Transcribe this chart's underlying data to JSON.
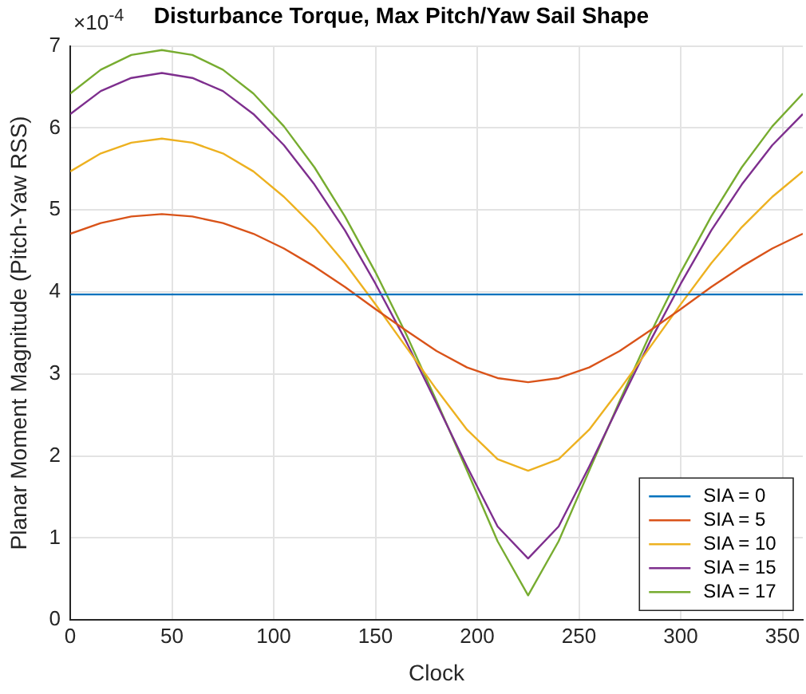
{
  "chart_data": {
    "type": "line",
    "title": "Disturbance Torque, Max Pitch/Yaw Sail Shape",
    "xlabel": "Clock",
    "ylabel": "Planar Moment Magnitude (Pitch-Yaw RSS)",
    "annotations": [
      "×10$^{-4}$"
    ],
    "x": [
      0,
      15,
      30,
      45,
      60,
      75,
      90,
      105,
      120,
      135,
      150,
      165,
      180,
      195,
      210,
      225,
      240,
      255,
      270,
      285,
      300,
      315,
      330,
      345,
      360
    ],
    "series": [
      {
        "name": "SIA = 0",
        "color": "#0072bd",
        "values": [
          3.97,
          3.97,
          3.97,
          3.97,
          3.97,
          3.97,
          3.97,
          3.97,
          3.97,
          3.97,
          3.97,
          3.97,
          3.97,
          3.97,
          3.97,
          3.97,
          3.97,
          3.97,
          3.97,
          3.97,
          3.97,
          3.97,
          3.97,
          3.97,
          3.97
        ]
      },
      {
        "name": "SIA = 5",
        "color": "#d95319",
        "values": [
          4.71,
          4.84,
          4.92,
          4.95,
          4.92,
          4.84,
          4.71,
          4.53,
          4.31,
          4.06,
          3.79,
          3.53,
          3.28,
          3.08,
          2.95,
          2.9,
          2.95,
          3.08,
          3.28,
          3.53,
          3.79,
          4.06,
          4.31,
          4.53,
          4.71
        ]
      },
      {
        "name": "SIA = 10",
        "color": "#edb120",
        "values": [
          5.47,
          5.69,
          5.82,
          5.87,
          5.82,
          5.69,
          5.47,
          5.16,
          4.79,
          4.35,
          3.85,
          3.33,
          2.81,
          2.32,
          1.96,
          1.82,
          1.96,
          2.32,
          2.81,
          3.33,
          3.85,
          4.35,
          4.79,
          5.16,
          5.47
        ]
      },
      {
        "name": "SIA = 15",
        "color": "#7e2f8e",
        "values": [
          6.17,
          6.45,
          6.61,
          6.67,
          6.61,
          6.45,
          6.17,
          5.79,
          5.31,
          4.75,
          4.1,
          3.4,
          2.64,
          1.87,
          1.14,
          0.75,
          1.14,
          1.87,
          2.64,
          3.4,
          4.1,
          4.75,
          5.31,
          5.79,
          6.17
        ]
      },
      {
        "name": "SIA = 17",
        "color": "#77ac30",
        "values": [
          6.42,
          6.71,
          6.89,
          6.95,
          6.89,
          6.71,
          6.42,
          6.02,
          5.52,
          4.92,
          4.24,
          3.49,
          2.67,
          1.82,
          0.96,
          0.3,
          0.96,
          1.82,
          2.67,
          3.49,
          4.24,
          4.92,
          5.52,
          6.02,
          6.42
        ]
      }
    ],
    "xlim": [
      0,
      360
    ],
    "xticks": [
      0,
      50,
      100,
      150,
      200,
      250,
      300,
      350
    ],
    "ylim": [
      0,
      7
    ],
    "yticks": [
      0,
      1,
      2,
      3,
      4,
      5,
      6,
      7
    ],
    "grid": true,
    "legend": "bottom right",
    "marker": "none",
    "line_style": "solid"
  }
}
